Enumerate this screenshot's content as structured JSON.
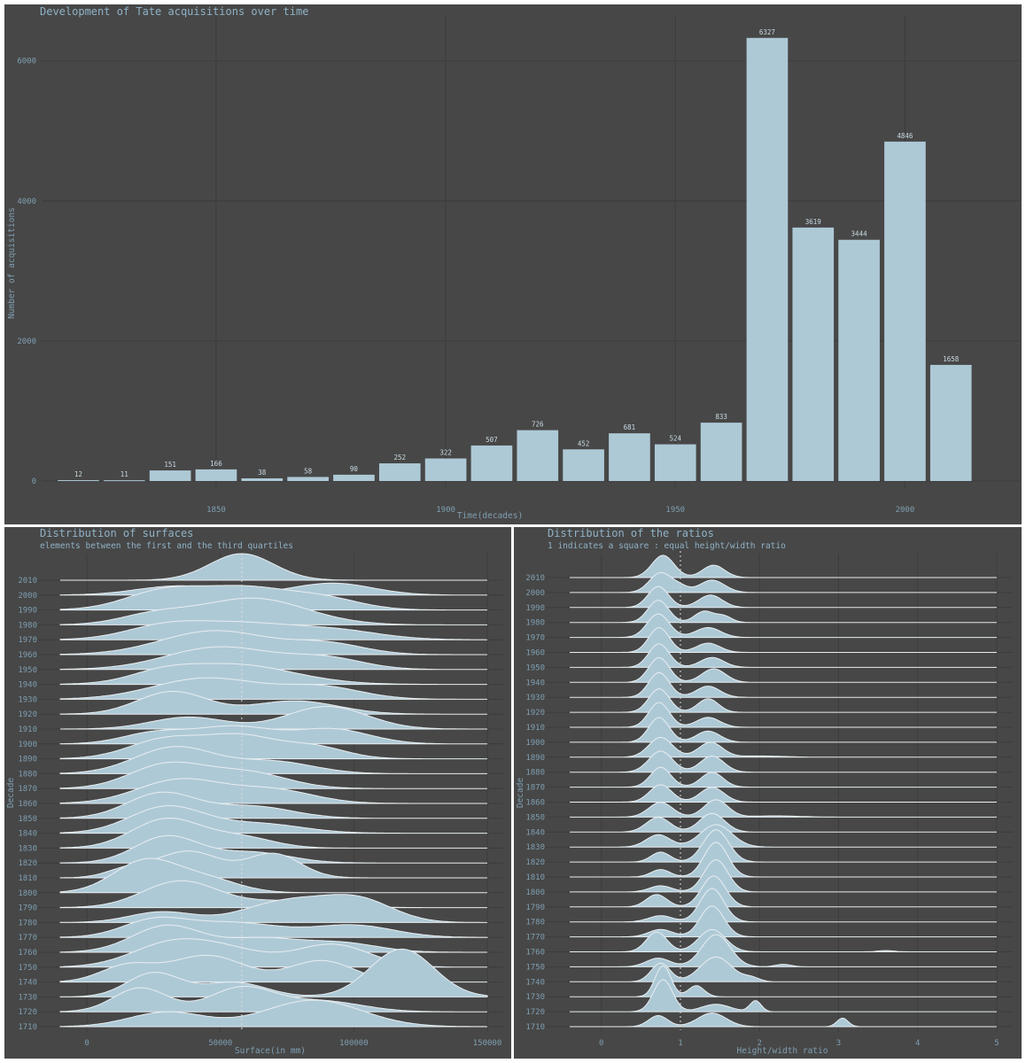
{
  "colors": {
    "background": "#474747",
    "fill": "#aec9d6",
    "outline": "#e8eef1",
    "text": "#8fb2c6",
    "grid": "#3c3c3c"
  },
  "chart_data": [
    {
      "type": "bar",
      "title": "Development of Tate acquisitions over time",
      "xlabel": "Time(decades)",
      "ylabel": "Number of acquisitions",
      "x": [
        1820,
        1830,
        1840,
        1850,
        1860,
        1870,
        1880,
        1890,
        1900,
        1910,
        1920,
        1930,
        1940,
        1950,
        1960,
        1970,
        1980,
        1990,
        2000,
        2010
      ],
      "values": [
        12,
        11,
        151,
        166,
        38,
        58,
        90,
        252,
        322,
        507,
        726,
        452,
        681,
        524,
        833,
        6327,
        3619,
        3444,
        4846,
        1658
      ],
      "labels": [
        "12",
        "11",
        "151",
        "166",
        "38",
        "58",
        "90",
        "252",
        "322",
        "507",
        "726",
        "452",
        "681",
        "524",
        "833",
        "6327",
        "3619",
        "3444",
        "4846",
        "1658"
      ],
      "xticks": [
        "1850",
        "1900",
        "1950",
        "2000"
      ],
      "yticks": [
        "0",
        "2000",
        "4000",
        "6000"
      ],
      "xlim": [
        1812,
        2025
      ],
      "ylim": [
        0,
        6400
      ],
      "grid": true
    },
    {
      "type": "area",
      "title": "Distribution of surfaces",
      "subtitle": "elements between the first and the third quartiles",
      "xlabel": "Surface(in mm)",
      "ylabel": "Decade",
      "xticks": [
        "0",
        "50000",
        "100000",
        "150000"
      ],
      "xlim": [
        -10000,
        150000
      ],
      "reference_line": 58000,
      "series": [
        {
          "name": "2010",
          "peaks": [
            [
              58000,
              12000,
              1.0
            ]
          ]
        },
        {
          "name": "2000",
          "peaks": [
            [
              35000,
              16000,
              0.35
            ],
            [
              92000,
              15000,
              0.45
            ]
          ]
        },
        {
          "name": "1990",
          "peaks": [
            [
              30000,
              15000,
              0.75
            ],
            [
              60000,
              15000,
              0.75
            ],
            [
              88000,
              14000,
              0.45
            ]
          ]
        },
        {
          "name": "1980",
          "peaks": [
            [
              62000,
              20000,
              1.0
            ],
            [
              25000,
              13000,
              0.35
            ]
          ]
        },
        {
          "name": "1970",
          "peaks": [
            [
              30000,
              15000,
              0.55
            ],
            [
              58000,
              16000,
              0.5
            ],
            [
              90000,
              18000,
              0.4
            ]
          ]
        },
        {
          "name": "1960",
          "peaks": [
            [
              48000,
              20000,
              0.9
            ],
            [
              90000,
              14000,
              0.4
            ]
          ]
        },
        {
          "name": "1950",
          "peaks": [
            [
              50000,
              20000,
              0.85
            ],
            [
              90000,
              14000,
              0.4
            ]
          ]
        },
        {
          "name": "1940",
          "peaks": [
            [
              55000,
              22000,
              0.75
            ],
            [
              28000,
              12000,
              0.3
            ]
          ]
        },
        {
          "name": "1930",
          "peaks": [
            [
              45000,
              20000,
              0.8
            ],
            [
              88000,
              15000,
              0.45
            ]
          ]
        },
        {
          "name": "1920",
          "peaks": [
            [
              32000,
              13000,
              0.85
            ],
            [
              78000,
              16000,
              0.5
            ]
          ]
        },
        {
          "name": "1910",
          "peaks": [
            [
              38000,
              14000,
              0.45
            ],
            [
              90000,
              15000,
              0.85
            ]
          ]
        },
        {
          "name": "1900",
          "peaks": [
            [
              25000,
              12000,
              0.4
            ],
            [
              55000,
              15000,
              0.65
            ],
            [
              92000,
              14000,
              0.55
            ]
          ]
        },
        {
          "name": "1890",
          "peaks": [
            [
              30000,
              14000,
              0.75
            ],
            [
              58000,
              13000,
              0.8
            ],
            [
              85000,
              12000,
              0.45
            ]
          ]
        },
        {
          "name": "1880",
          "peaks": [
            [
              33000,
              15000,
              1.0
            ],
            [
              70000,
              15000,
              0.45
            ]
          ]
        },
        {
          "name": "1870",
          "peaks": [
            [
              30000,
              14000,
              0.9
            ],
            [
              60000,
              15000,
              0.6
            ]
          ]
        },
        {
          "name": "1860",
          "peaks": [
            [
              35000,
              16000,
              0.9
            ],
            [
              70000,
              15000,
              0.5
            ]
          ]
        },
        {
          "name": "1850",
          "peaks": [
            [
              28000,
              13000,
              0.95
            ],
            [
              62000,
              15000,
              0.45
            ]
          ]
        },
        {
          "name": "1840",
          "peaks": [
            [
              30000,
              14000,
              1.0
            ],
            [
              65000,
              16000,
              0.35
            ]
          ]
        },
        {
          "name": "1830",
          "peaks": [
            [
              30000,
              13000,
              1.1
            ],
            [
              58000,
              12000,
              0.4
            ]
          ]
        },
        {
          "name": "1820",
          "peaks": [
            [
              30000,
              12000,
              1.0
            ],
            [
              62000,
              14000,
              0.4
            ]
          ]
        },
        {
          "name": "1810",
          "peaks": [
            [
              38000,
              12000,
              1.0
            ],
            [
              70000,
              10000,
              0.9
            ],
            [
              15000,
              8000,
              0.3
            ]
          ]
        },
        {
          "name": "1800",
          "peaks": [
            [
              22000,
              12000,
              1.2
            ],
            [
              45000,
              12000,
              0.5
            ]
          ]
        },
        {
          "name": "1790",
          "peaks": [
            [
              35000,
              14000,
              1.0
            ],
            [
              75000,
              16000,
              0.25
            ]
          ]
        },
        {
          "name": "1780",
          "peaks": [
            [
              28000,
              12000,
              0.4
            ],
            [
              75000,
              16000,
              0.8
            ],
            [
              102000,
              13000,
              0.8
            ]
          ]
        },
        {
          "name": "1770",
          "peaks": [
            [
              25000,
              12000,
              0.6
            ],
            [
              55000,
              18000,
              0.55
            ],
            [
              100000,
              15000,
              0.45
            ]
          ]
        },
        {
          "name": "1760",
          "peaks": [
            [
              30000,
              13000,
              1.0
            ],
            [
              65000,
              14000,
              0.5
            ],
            [
              95000,
              14000,
              0.35
            ]
          ]
        },
        {
          "name": "1750",
          "peaks": [
            [
              32000,
              15000,
              0.9
            ],
            [
              92000,
              14000,
              0.85
            ],
            [
              55000,
              14000,
              0.5
            ]
          ]
        },
        {
          "name": "1740",
          "peaks": [
            [
              15000,
              10000,
              0.6
            ],
            [
              45000,
              14000,
              1.0
            ],
            [
              88000,
              12000,
              0.8
            ]
          ]
        },
        {
          "name": "1730",
          "peaks": [
            [
              25000,
              10000,
              0.9
            ],
            [
              55000,
              12000,
              0.55
            ],
            [
              118000,
              12000,
              1.8
            ]
          ]
        },
        {
          "name": "1720",
          "peaks": [
            [
              20000,
              10000,
              0.9
            ],
            [
              58000,
              12000,
              0.9
            ],
            [
              88000,
              15000,
              0.4
            ]
          ]
        },
        {
          "name": "1710",
          "peaks": [
            [
              30000,
              14000,
              0.55
            ],
            [
              85000,
              18000,
              1.0
            ]
          ]
        }
      ]
    },
    {
      "type": "area",
      "title": "Distribution of the ratios",
      "subtitle": "1 indicates a square : equal height/width ratio",
      "xlabel": "Height/width ratio",
      "ylabel": "Decade",
      "xticks": [
        "0",
        "1",
        "2",
        "3",
        "4",
        "5"
      ],
      "xlim": [
        -0.4,
        5
      ],
      "reference_line": 1,
      "series": [
        {
          "name": "2010",
          "peaks": [
            [
              0.78,
              0.14,
              1.8
            ],
            [
              1.42,
              0.14,
              1.0
            ]
          ]
        },
        {
          "name": "2000",
          "peaks": [
            [
              0.75,
              0.14,
              1.6
            ],
            [
              1.4,
              0.16,
              1.0
            ],
            [
              1.0,
              0.1,
              0.4
            ]
          ]
        },
        {
          "name": "1990",
          "peaks": [
            [
              0.72,
              0.13,
              1.7
            ],
            [
              1.38,
              0.15,
              1.0
            ]
          ]
        },
        {
          "name": "1980",
          "peaks": [
            [
              0.72,
              0.13,
              1.8
            ],
            [
              1.3,
              0.12,
              0.9
            ],
            [
              1.55,
              0.1,
              0.5
            ]
          ]
        },
        {
          "name": "1970",
          "peaks": [
            [
              0.72,
              0.14,
              1.9
            ],
            [
              1.35,
              0.16,
              0.8
            ]
          ]
        },
        {
          "name": "1960",
          "peaks": [
            [
              0.73,
              0.13,
              2.0
            ],
            [
              1.35,
              0.15,
              0.75
            ]
          ]
        },
        {
          "name": "1950",
          "peaks": [
            [
              0.73,
              0.13,
              1.9
            ],
            [
              1.4,
              0.15,
              0.8
            ]
          ]
        },
        {
          "name": "1940",
          "peaks": [
            [
              0.73,
              0.13,
              2.0
            ],
            [
              1.42,
              0.15,
              1.1
            ]
          ]
        },
        {
          "name": "1930",
          "peaks": [
            [
              0.73,
              0.13,
              2.0
            ],
            [
              1.35,
              0.15,
              0.9
            ]
          ]
        },
        {
          "name": "1920",
          "peaks": [
            [
              0.73,
              0.13,
              1.9
            ],
            [
              1.35,
              0.13,
              1.1
            ]
          ]
        },
        {
          "name": "1910",
          "peaks": [
            [
              0.73,
              0.13,
              2.0
            ],
            [
              1.35,
              0.15,
              0.8
            ]
          ]
        },
        {
          "name": "1900",
          "peaks": [
            [
              0.73,
              0.13,
              2.0
            ],
            [
              1.35,
              0.15,
              0.9
            ]
          ]
        },
        {
          "name": "1890",
          "peaks": [
            [
              0.75,
              0.15,
              1.6
            ],
            [
              1.38,
              0.15,
              1.2
            ],
            [
              2.0,
              0.3,
              0.1
            ]
          ]
        },
        {
          "name": "1880",
          "peaks": [
            [
              0.75,
              0.15,
              1.7
            ],
            [
              1.4,
              0.15,
              1.3
            ]
          ]
        },
        {
          "name": "1870",
          "peaks": [
            [
              0.75,
              0.13,
              1.6
            ],
            [
              1.4,
              0.14,
              1.2
            ]
          ]
        },
        {
          "name": "1860",
          "peaks": [
            [
              0.75,
              0.14,
              1.4
            ],
            [
              1.4,
              0.15,
              1.2
            ]
          ]
        },
        {
          "name": "1850",
          "peaks": [
            [
              0.75,
              0.15,
              1.2
            ],
            [
              1.45,
              0.15,
              1.4
            ],
            [
              2.2,
              0.3,
              0.1
            ]
          ]
        },
        {
          "name": "1840",
          "peaks": [
            [
              0.72,
              0.15,
              1.2
            ],
            [
              1.4,
              0.16,
              1.5
            ]
          ]
        },
        {
          "name": "1830",
          "peaks": [
            [
              0.72,
              0.15,
              1.0
            ],
            [
              1.45,
              0.2,
              1.8
            ]
          ]
        },
        {
          "name": "1820",
          "peaks": [
            [
              0.75,
              0.12,
              0.8
            ],
            [
              1.45,
              0.16,
              2.6
            ]
          ]
        },
        {
          "name": "1810",
          "peaks": [
            [
              0.75,
              0.12,
              0.6
            ],
            [
              1.45,
              0.15,
              2.8
            ]
          ]
        },
        {
          "name": "1800",
          "peaks": [
            [
              0.75,
              0.14,
              0.5
            ],
            [
              1.45,
              0.15,
              2.6
            ]
          ]
        },
        {
          "name": "1790",
          "peaks": [
            [
              0.7,
              0.13,
              1.0
            ],
            [
              1.42,
              0.15,
              2.5
            ]
          ]
        },
        {
          "name": "1780",
          "peaks": [
            [
              0.75,
              0.15,
              0.5
            ],
            [
              1.4,
              0.15,
              2.7
            ]
          ]
        },
        {
          "name": "1770",
          "peaks": [
            [
              0.75,
              0.15,
              0.6
            ],
            [
              1.4,
              0.15,
              2.5
            ]
          ]
        },
        {
          "name": "1760",
          "peaks": [
            [
              0.7,
              0.13,
              1.6
            ],
            [
              1.4,
              0.17,
              1.8
            ],
            [
              3.6,
              0.1,
              0.1
            ]
          ]
        },
        {
          "name": "1750",
          "peaks": [
            [
              0.72,
              0.15,
              0.7
            ],
            [
              1.45,
              0.18,
              2.6
            ],
            [
              2.3,
              0.1,
              0.2
            ]
          ]
        },
        {
          "name": "1740",
          "peaks": [
            [
              0.75,
              0.12,
              1.5
            ],
            [
              1.45,
              0.2,
              2.0
            ],
            [
              1.9,
              0.1,
              0.3
            ]
          ]
        },
        {
          "name": "1730",
          "peaks": [
            [
              0.78,
              0.1,
              2.5
            ],
            [
              1.2,
              0.1,
              0.9
            ]
          ]
        },
        {
          "name": "1720",
          "peaks": [
            [
              0.78,
              0.12,
              2.6
            ],
            [
              1.45,
              0.18,
              0.6
            ],
            [
              1.95,
              0.07,
              0.9
            ]
          ]
        },
        {
          "name": "1710",
          "peaks": [
            [
              0.72,
              0.12,
              0.9
            ],
            [
              1.4,
              0.18,
              1.1
            ],
            [
              3.05,
              0.07,
              0.7
            ]
          ]
        }
      ]
    }
  ]
}
